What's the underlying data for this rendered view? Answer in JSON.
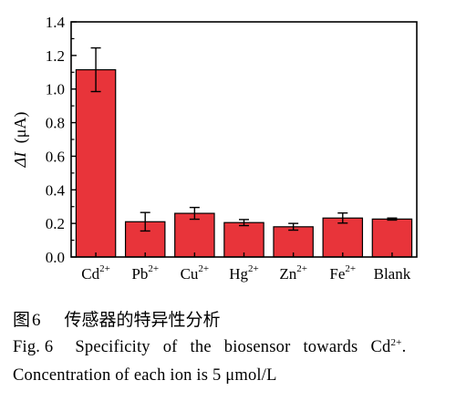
{
  "chart_data": {
    "type": "bar",
    "categories": [
      {
        "base": "Cd",
        "sup": "2+"
      },
      {
        "base": "Pb",
        "sup": "2+"
      },
      {
        "base": "Cu",
        "sup": "2+"
      },
      {
        "base": "Hg",
        "sup": "2+"
      },
      {
        "base": "Zn",
        "sup": "2+"
      },
      {
        "base": "Fe",
        "sup": "2+"
      },
      {
        "base": "Blank",
        "sup": ""
      }
    ],
    "values": [
      1.115,
      0.21,
      0.26,
      0.205,
      0.18,
      0.232,
      0.226
    ],
    "errors": [
      0.13,
      0.055,
      0.035,
      0.018,
      0.02,
      0.03,
      0.006
    ],
    "ylabel_italic": "ΔI",
    "ylabel_unit": "(μA)",
    "ylim": [
      0.0,
      1.4
    ],
    "yticks": [
      "0.0",
      "0.2",
      "0.4",
      "0.6",
      "0.8",
      "1.0",
      "1.2",
      "1.4"
    ],
    "bar_color": "#e8343a",
    "grid": false
  },
  "caption": {
    "zh_label": "图",
    "zh_number": "6",
    "zh_text": "传感器的特异性分析",
    "en_fig": "Fig. 6",
    "en_line1_words": [
      "Specificity",
      "of",
      "the",
      "biosensor",
      "towards"
    ],
    "en_line1_ion": "Cd",
    "en_line1_ion_sup": "2+",
    "en_line1_end": ".",
    "en_line2": "Concentration of each ion is 5 μmol/L"
  }
}
